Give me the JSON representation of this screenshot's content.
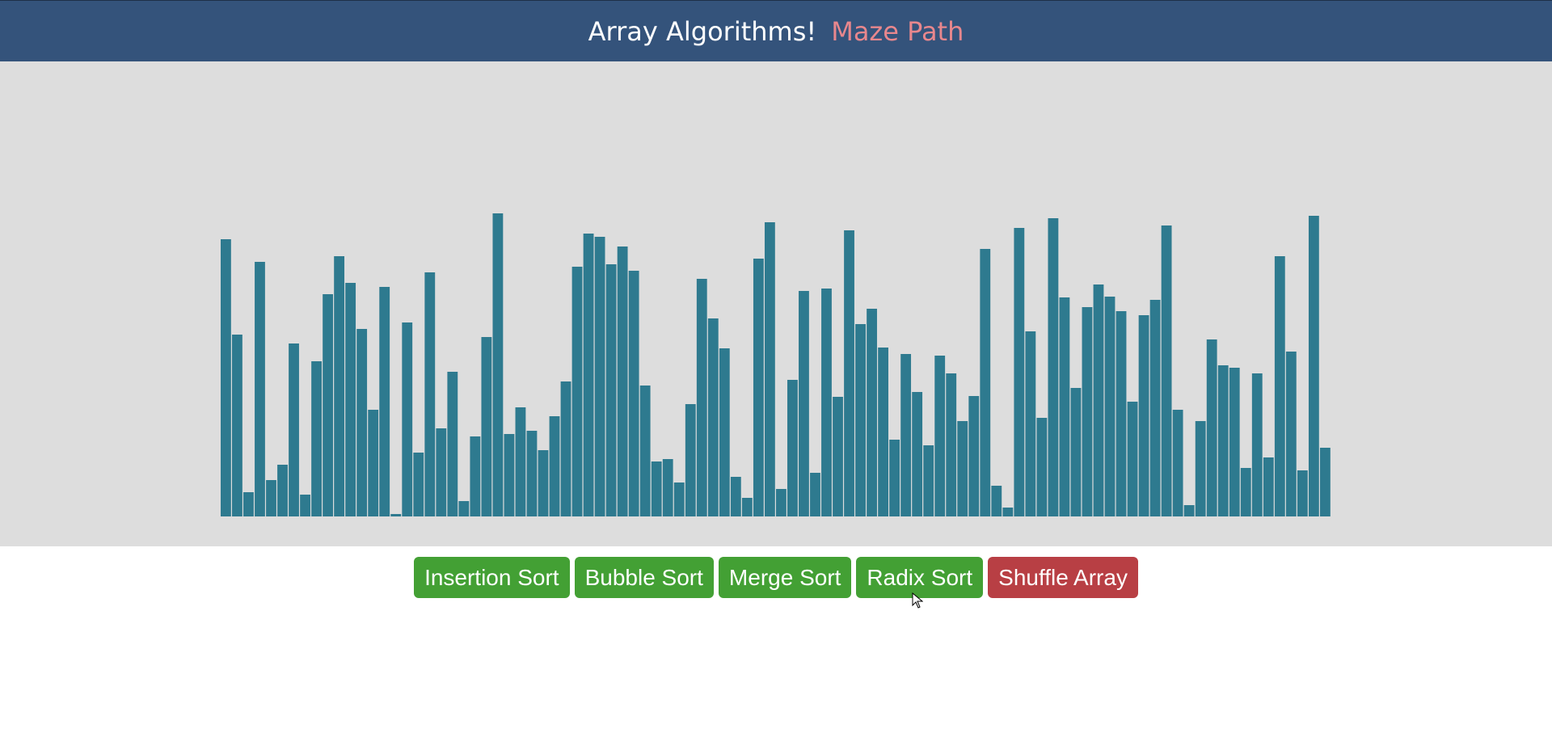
{
  "header": {
    "title": "Array Algorithms!",
    "link": "Maze Path"
  },
  "colors": {
    "header_bg": "#34537b",
    "link": "#e8878d",
    "stage_bg": "#dddddd",
    "bar": "#2e7a8f",
    "sort_button": "#43a034",
    "shuffle_button": "#b83f44"
  },
  "controls": {
    "insertion_sort": "Insertion Sort",
    "bubble_sort": "Bubble Sort",
    "merge_sort": "Merge Sort",
    "radix_sort": "Radix Sort",
    "shuffle_array": "Shuffle Array"
  },
  "chart_data": {
    "type": "bar",
    "description_values_unit": "relative bar heights (0-375 scale of unsorted array)",
    "values": [
      343,
      225,
      30,
      315,
      45,
      64,
      214,
      27,
      192,
      275,
      322,
      289,
      232,
      132,
      284,
      3,
      240,
      79,
      302,
      109,
      179,
      19,
      99,
      222,
      375,
      102,
      135,
      106,
      82,
      124,
      167,
      309,
      350,
      346,
      312,
      334,
      304,
      162,
      68,
      71,
      42,
      139,
      294,
      245,
      208,
      49,
      23,
      319,
      364,
      34,
      169,
      279,
      54,
      282,
      148,
      354,
      238,
      257,
      209,
      95,
      201,
      154,
      88,
      199,
      177,
      118,
      149,
      331,
      38,
      11,
      357,
      229,
      122,
      369,
      271,
      159,
      259,
      287,
      272,
      254,
      142,
      249,
      268,
      360,
      132,
      14,
      118,
      219,
      187,
      184,
      60,
      177,
      73,
      322,
      204,
      57,
      372,
      85
    ]
  }
}
